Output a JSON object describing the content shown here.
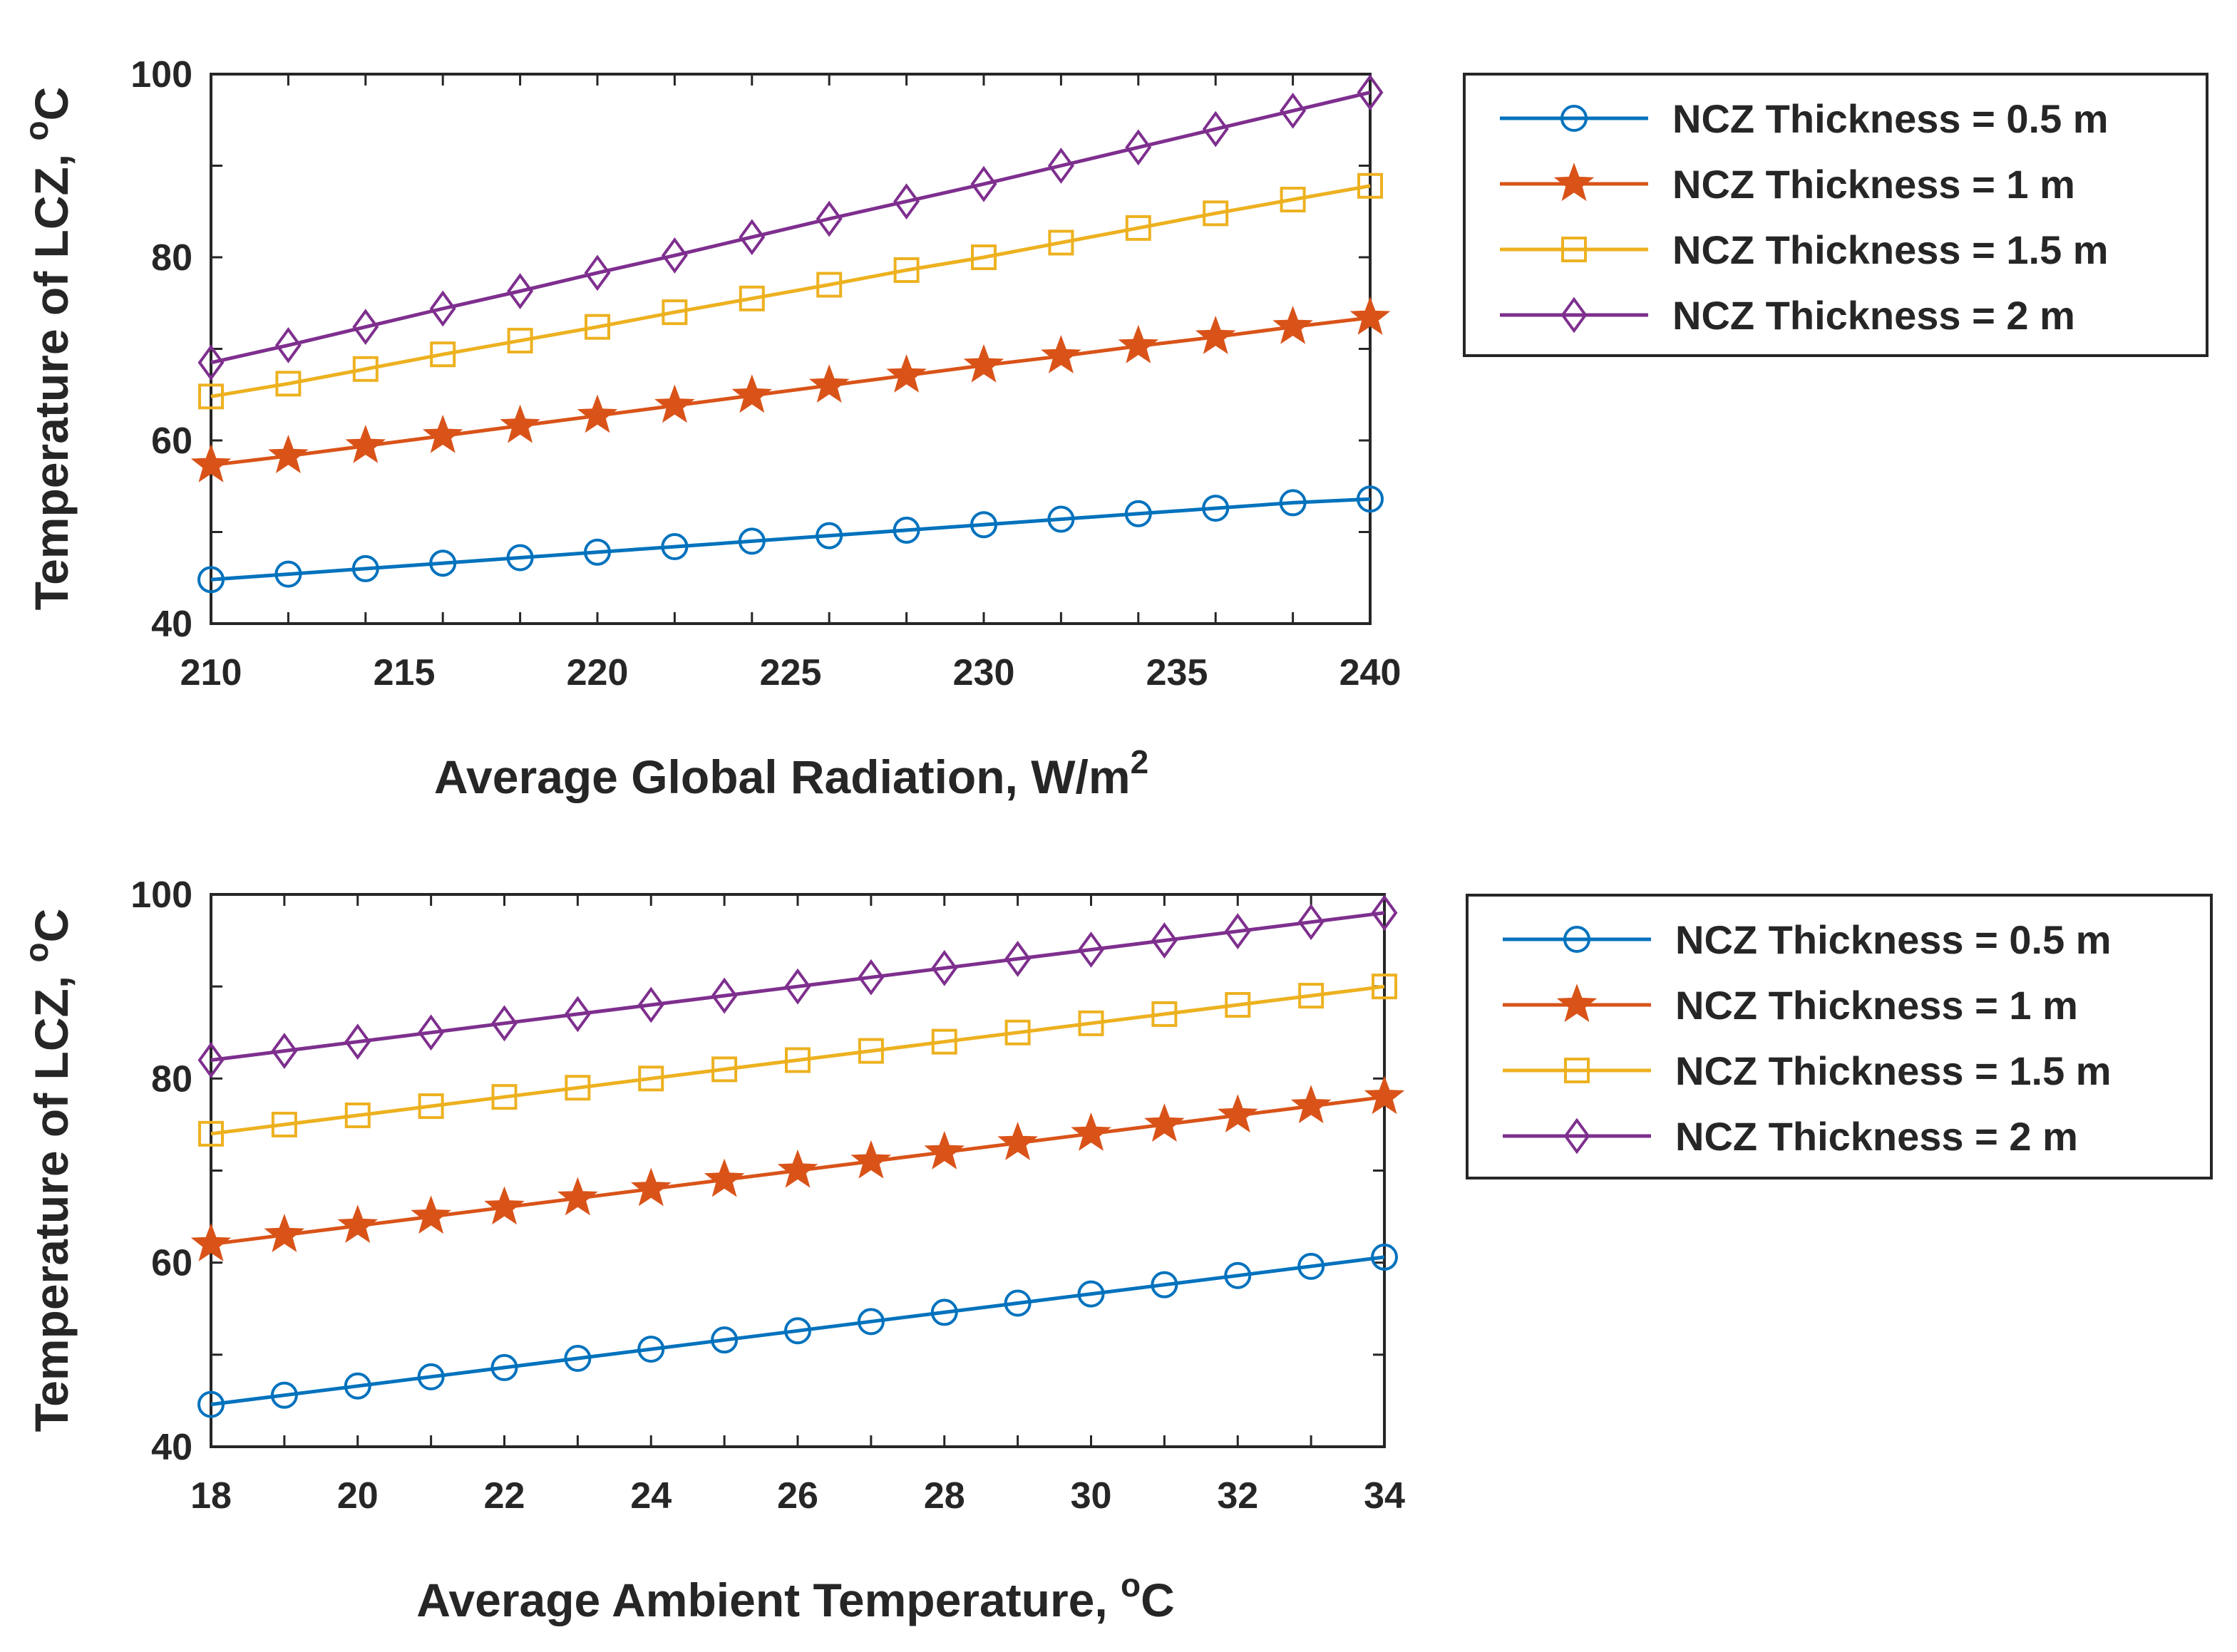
{
  "colors": {
    "series": [
      "#0072BD",
      "#D95319",
      "#EDB120",
      "#7E2F8E"
    ],
    "axis": "#262626"
  },
  "chart_data": [
    {
      "type": "line",
      "xlabel": "Average Global Radiation, W/m",
      "xlabel_sup": "2",
      "ylabel": "Temperature of LCZ, ",
      "ylabel_sup": "o",
      "ylabel_suffix": "C",
      "xlim": [
        210,
        240
      ],
      "ylim": [
        40,
        100
      ],
      "xticks": [
        210,
        215,
        220,
        225,
        230,
        235,
        240
      ],
      "yticks": [
        40,
        60,
        80,
        100
      ],
      "x": [
        210,
        212,
        214,
        216,
        218,
        220,
        222,
        224,
        226,
        228,
        230,
        232,
        234,
        236,
        238,
        240
      ],
      "series": [
        {
          "name": "NCZ Thickness = 0.5 m",
          "marker": "circle",
          "values": [
            44.8,
            45.4,
            46.0,
            46.6,
            47.2,
            47.8,
            48.4,
            49.0,
            49.6,
            50.2,
            50.8,
            51.4,
            52.0,
            52.6,
            53.2,
            53.6
          ]
        },
        {
          "name": "NCZ Thickness = 1 m",
          "marker": "star",
          "values": [
            57.3,
            58.3,
            59.4,
            60.5,
            61.6,
            62.7,
            63.8,
            64.9,
            66.0,
            67.1,
            68.2,
            69.2,
            70.3,
            71.3,
            72.4,
            73.4
          ]
        },
        {
          "name": "NCZ Thickness = 1.5 m",
          "marker": "square",
          "values": [
            64.8,
            66.2,
            67.8,
            69.4,
            70.9,
            72.4,
            74.0,
            75.5,
            77.0,
            78.6,
            80.0,
            81.6,
            83.2,
            84.8,
            86.3,
            87.8
          ]
        },
        {
          "name": "NCZ Thickness = 2 m",
          "marker": "diamond",
          "values": [
            68.5,
            70.4,
            72.4,
            74.4,
            76.3,
            78.3,
            80.2,
            82.2,
            84.2,
            86.1,
            88.0,
            90.0,
            92.0,
            94.0,
            96.0,
            98.0
          ]
        }
      ],
      "legend_position": "outside-right"
    },
    {
      "type": "line",
      "xlabel": "Average Ambient Temperature, ",
      "xlabel_sup": "o",
      "xlabel_suffix": "C",
      "ylabel": "Temperature of LCZ, ",
      "ylabel_sup": "o",
      "ylabel_suffix": "C",
      "xlim": [
        18,
        34
      ],
      "ylim": [
        40,
        100
      ],
      "xticks": [
        18,
        20,
        22,
        24,
        26,
        28,
        30,
        32,
        34
      ],
      "yticks": [
        40,
        60,
        80,
        100
      ],
      "x": [
        18,
        19,
        20,
        21,
        22,
        23,
        24,
        25,
        26,
        27,
        28,
        29,
        30,
        31,
        32,
        33,
        34
      ],
      "series": [
        {
          "name": "NCZ Thickness = 0.5 m",
          "marker": "circle",
          "values": [
            44.6,
            45.6,
            46.6,
            47.6,
            48.6,
            49.6,
            50.6,
            51.6,
            52.6,
            53.6,
            54.6,
            55.6,
            56.6,
            57.6,
            58.6,
            59.6,
            60.6
          ]
        },
        {
          "name": "NCZ Thickness = 1 m",
          "marker": "star",
          "values": [
            62,
            63,
            64,
            65,
            66,
            67,
            68,
            69,
            70,
            71,
            72,
            73,
            74,
            75,
            76,
            77,
            78
          ]
        },
        {
          "name": "NCZ Thickness = 1.5 m",
          "marker": "square",
          "values": [
            74,
            75,
            76,
            77,
            78,
            79,
            80,
            81,
            82,
            83,
            84,
            85,
            86,
            87,
            88,
            89,
            90
          ]
        },
        {
          "name": "NCZ Thickness = 2 m",
          "marker": "diamond",
          "values": [
            82,
            83,
            84,
            85,
            86,
            87,
            88,
            89,
            90,
            91,
            92,
            93,
            94,
            95,
            96,
            97,
            98
          ]
        }
      ],
      "legend_position": "outside-right"
    }
  ]
}
